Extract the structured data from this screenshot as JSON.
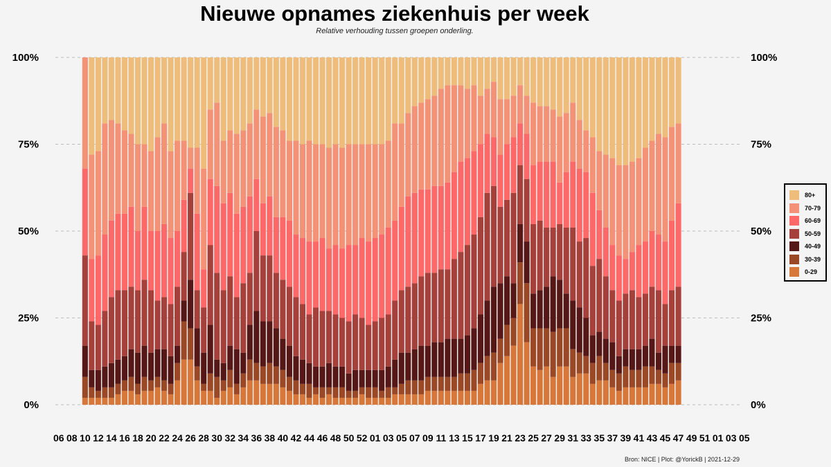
{
  "title": "Nieuwe opnames ziekenhuis per week",
  "subtitle": "Relative verhouding tussen groepen onderling.",
  "source": "Bron: NICE | Plot: @YorickB |  2021-12-29",
  "colors": {
    "80+": "#efbd7b",
    "70-79": "#f39277",
    "60-69": "#fd6868",
    "50-59": "#a5403b",
    "40-49": "#561816",
    "30-39": "#9a4826",
    "0-29": "#d8773a",
    "grid": "#bcbcbc",
    "background": "#f4f4f4"
  },
  "legend": {
    "items": [
      "80+",
      "70-79",
      "60-69",
      "50-59",
      "40-49",
      "30-39",
      "0-29"
    ]
  },
  "chart_data": {
    "type": "bar",
    "stacked": true,
    "normalized": true,
    "title": "Nieuwe opnames ziekenhuis per week",
    "xlabel": "",
    "ylabel": "",
    "ylim": [
      0,
      1
    ],
    "y_ticks": [
      "0%",
      "25%",
      "50%",
      "75%",
      "100%"
    ],
    "x_tick_labels": [
      "06",
      "08",
      "10",
      "12",
      "14",
      "16",
      "18",
      "20",
      "22",
      "24",
      "26",
      "28",
      "30",
      "32",
      "34",
      "36",
      "38",
      "40",
      "42",
      "44",
      "46",
      "48",
      "50",
      "52",
      "01",
      "03",
      "05",
      "07",
      "09",
      "11",
      "13",
      "15",
      "17",
      "19",
      "21",
      "23",
      "25",
      "27",
      "29",
      "31",
      "33",
      "35",
      "37",
      "39",
      "41",
      "43",
      "45",
      "47",
      "49",
      "51",
      "01",
      "03",
      "05"
    ],
    "x_range_weeks": [
      104
    ],
    "first_bar_index": 4,
    "series_order": [
      "0-29",
      "30-39",
      "40-49",
      "50-59",
      "60-69",
      "70-79",
      "80+"
    ],
    "cumulative_bounds": [
      [
        0.02,
        0.08,
        0.17,
        0.43,
        0.68
      ],
      [
        0.02,
        0.05,
        0.1,
        0.24,
        0.42,
        0.72
      ],
      [
        0.02,
        0.04,
        0.1,
        0.23,
        0.43,
        0.73
      ],
      [
        0.02,
        0.05,
        0.11,
        0.27,
        0.49,
        0.81
      ],
      [
        0.02,
        0.05,
        0.12,
        0.31,
        0.53,
        0.82
      ],
      [
        0.03,
        0.06,
        0.13,
        0.33,
        0.55,
        0.81
      ],
      [
        0.04,
        0.07,
        0.14,
        0.33,
        0.55,
        0.79
      ],
      [
        0.04,
        0.08,
        0.16,
        0.34,
        0.57,
        0.78
      ],
      [
        0.03,
        0.06,
        0.15,
        0.33,
        0.5,
        0.75
      ],
      [
        0.04,
        0.08,
        0.17,
        0.36,
        0.57,
        0.75
      ],
      [
        0.04,
        0.07,
        0.15,
        0.33,
        0.5,
        0.73
      ],
      [
        0.05,
        0.08,
        0.16,
        0.3,
        0.5,
        0.77
      ],
      [
        0.04,
        0.07,
        0.16,
        0.31,
        0.52,
        0.81
      ],
      [
        0.03,
        0.06,
        0.14,
        0.29,
        0.48,
        0.73
      ],
      [
        0.07,
        0.12,
        0.17,
        0.34,
        0.5,
        0.76
      ],
      [
        0.13,
        0.24,
        0.3,
        0.44,
        0.59,
        0.76
      ],
      [
        0.13,
        0.22,
        0.36,
        0.61,
        0.68,
        0.74
      ],
      [
        0.07,
        0.11,
        0.22,
        0.33,
        0.55,
        0.74
      ],
      [
        0.04,
        0.06,
        0.15,
        0.28,
        0.39,
        0.68
      ],
      [
        0.04,
        0.09,
        0.23,
        0.46,
        0.65,
        0.85
      ],
      [
        0.02,
        0.08,
        0.13,
        0.38,
        0.63,
        0.87
      ],
      [
        0.04,
        0.07,
        0.12,
        0.33,
        0.58,
        0.76
      ],
      [
        0.05,
        0.1,
        0.17,
        0.37,
        0.61,
        0.79
      ],
      [
        0.03,
        0.06,
        0.16,
        0.31,
        0.55,
        0.78
      ],
      [
        0.05,
        0.09,
        0.15,
        0.35,
        0.57,
        0.79
      ],
      [
        0.07,
        0.13,
        0.23,
        0.38,
        0.6,
        0.81
      ],
      [
        0.07,
        0.12,
        0.27,
        0.5,
        0.65,
        0.85
      ],
      [
        0.06,
        0.11,
        0.24,
        0.43,
        0.58,
        0.83
      ],
      [
        0.06,
        0.12,
        0.24,
        0.43,
        0.6,
        0.84
      ],
      [
        0.06,
        0.11,
        0.22,
        0.38,
        0.54,
        0.8
      ],
      [
        0.05,
        0.1,
        0.19,
        0.36,
        0.54,
        0.79
      ],
      [
        0.04,
        0.08,
        0.17,
        0.34,
        0.53,
        0.76
      ],
      [
        0.03,
        0.07,
        0.14,
        0.31,
        0.49,
        0.76
      ],
      [
        0.03,
        0.06,
        0.13,
        0.29,
        0.48,
        0.75
      ],
      [
        0.02,
        0.06,
        0.12,
        0.26,
        0.47,
        0.76
      ],
      [
        0.03,
        0.05,
        0.11,
        0.28,
        0.47,
        0.75
      ],
      [
        0.02,
        0.05,
        0.11,
        0.27,
        0.48,
        0.75
      ],
      [
        0.03,
        0.05,
        0.12,
        0.27,
        0.45,
        0.74
      ],
      [
        0.02,
        0.05,
        0.11,
        0.26,
        0.46,
        0.75
      ],
      [
        0.02,
        0.05,
        0.11,
        0.25,
        0.45,
        0.74
      ],
      [
        0.02,
        0.04,
        0.09,
        0.24,
        0.46,
        0.75
      ],
      [
        0.02,
        0.04,
        0.1,
        0.26,
        0.46,
        0.75
      ],
      [
        0.03,
        0.05,
        0.1,
        0.25,
        0.48,
        0.75
      ],
      [
        0.02,
        0.05,
        0.1,
        0.23,
        0.47,
        0.75
      ],
      [
        0.02,
        0.05,
        0.1,
        0.24,
        0.48,
        0.75
      ],
      [
        0.02,
        0.04,
        0.1,
        0.25,
        0.49,
        0.75
      ],
      [
        0.02,
        0.05,
        0.11,
        0.26,
        0.51,
        0.76
      ],
      [
        0.03,
        0.05,
        0.13,
        0.3,
        0.53,
        0.81
      ],
      [
        0.03,
        0.06,
        0.15,
        0.33,
        0.57,
        0.81
      ],
      [
        0.03,
        0.07,
        0.15,
        0.34,
        0.6,
        0.84
      ],
      [
        0.03,
        0.07,
        0.16,
        0.35,
        0.61,
        0.86
      ],
      [
        0.03,
        0.07,
        0.17,
        0.37,
        0.62,
        0.87
      ],
      [
        0.04,
        0.08,
        0.17,
        0.38,
        0.62,
        0.88
      ],
      [
        0.04,
        0.08,
        0.18,
        0.38,
        0.63,
        0.89
      ],
      [
        0.04,
        0.08,
        0.18,
        0.39,
        0.63,
        0.91
      ],
      [
        0.04,
        0.08,
        0.19,
        0.39,
        0.64,
        0.92
      ],
      [
        0.04,
        0.08,
        0.19,
        0.42,
        0.67,
        0.92
      ],
      [
        0.04,
        0.09,
        0.19,
        0.44,
        0.7,
        0.92
      ],
      [
        0.04,
        0.09,
        0.2,
        0.46,
        0.71,
        0.91
      ],
      [
        0.04,
        0.1,
        0.22,
        0.49,
        0.73,
        0.92
      ],
      [
        0.06,
        0.12,
        0.26,
        0.54,
        0.75,
        0.89
      ],
      [
        0.07,
        0.14,
        0.3,
        0.61,
        0.78,
        0.91
      ],
      [
        0.07,
        0.15,
        0.34,
        0.63,
        0.77,
        0.93
      ],
      [
        0.12,
        0.19,
        0.35,
        0.57,
        0.72,
        0.88
      ],
      [
        0.14,
        0.23,
        0.37,
        0.59,
        0.75,
        0.88
      ],
      [
        0.17,
        0.25,
        0.35,
        0.61,
        0.77,
        0.89
      ],
      [
        0.29,
        0.41,
        0.52,
        0.69,
        0.81,
        0.92
      ],
      [
        0.18,
        0.35,
        0.47,
        0.65,
        0.78,
        0.89
      ],
      [
        0.11,
        0.22,
        0.32,
        0.52,
        0.69,
        0.87
      ],
      [
        0.1,
        0.22,
        0.33,
        0.53,
        0.7,
        0.86
      ],
      [
        0.11,
        0.22,
        0.34,
        0.51,
        0.7,
        0.86
      ],
      [
        0.08,
        0.21,
        0.37,
        0.51,
        0.7,
        0.85
      ],
      [
        0.11,
        0.22,
        0.36,
        0.52,
        0.64,
        0.83
      ],
      [
        0.11,
        0.22,
        0.32,
        0.51,
        0.67,
        0.84
      ],
      [
        0.08,
        0.16,
        0.3,
        0.51,
        0.7,
        0.87
      ],
      [
        0.09,
        0.15,
        0.28,
        0.47,
        0.68,
        0.82
      ],
      [
        0.09,
        0.14,
        0.25,
        0.48,
        0.67,
        0.79
      ],
      [
        0.06,
        0.12,
        0.2,
        0.4,
        0.61,
        0.77
      ],
      [
        0.07,
        0.14,
        0.21,
        0.42,
        0.56,
        0.73
      ],
      [
        0.07,
        0.12,
        0.19,
        0.37,
        0.51,
        0.72
      ],
      [
        0.05,
        0.1,
        0.18,
        0.33,
        0.46,
        0.71
      ],
      [
        0.04,
        0.09,
        0.14,
        0.3,
        0.43,
        0.69
      ],
      [
        0.05,
        0.11,
        0.16,
        0.32,
        0.42,
        0.69
      ],
      [
        0.05,
        0.1,
        0.16,
        0.33,
        0.44,
        0.7
      ],
      [
        0.05,
        0.1,
        0.16,
        0.31,
        0.46,
        0.71
      ],
      [
        0.05,
        0.11,
        0.17,
        0.32,
        0.47,
        0.74
      ],
      [
        0.06,
        0.11,
        0.19,
        0.34,
        0.5,
        0.76
      ],
      [
        0.06,
        0.1,
        0.15,
        0.33,
        0.49,
        0.78
      ],
      [
        0.05,
        0.09,
        0.17,
        0.29,
        0.47,
        0.77
      ],
      [
        0.06,
        0.12,
        0.17,
        0.33,
        0.53,
        0.8
      ],
      [
        0.07,
        0.12,
        0.17,
        0.34,
        0.58,
        0.81
      ]
    ]
  }
}
